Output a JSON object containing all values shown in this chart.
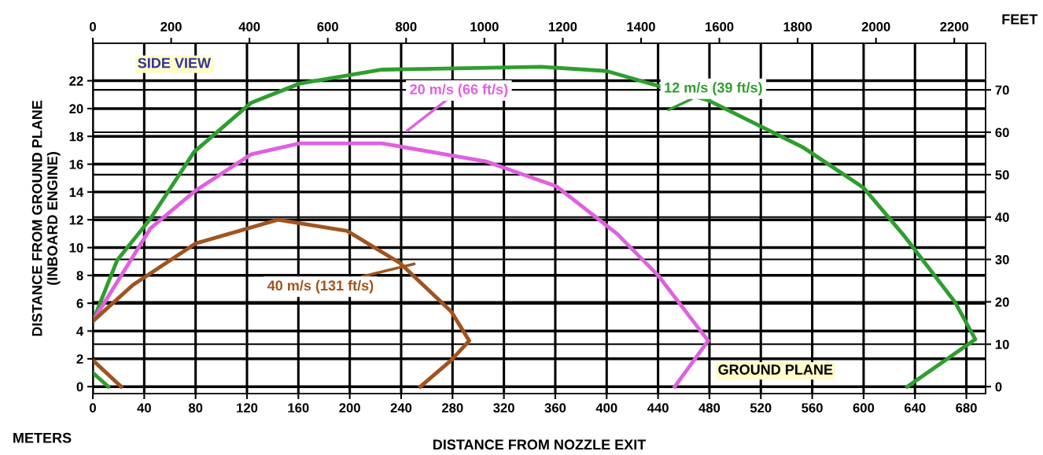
{
  "chart_data": {
    "type": "line",
    "xlabel": "DISTANCE FROM NOZZLE EXIT",
    "ylabel": "DISTANCE FROM GROUND PLANE\n(INBOARD ENGINE)",
    "xlim": [
      0,
      695
    ],
    "ylim": [
      -0.5,
      24.7
    ],
    "xticks": [
      0,
      40,
      80,
      120,
      160,
      200,
      240,
      280,
      320,
      360,
      400,
      440,
      480,
      520,
      560,
      600,
      640,
      680
    ],
    "yticks": [
      0,
      2,
      4,
      6,
      8,
      10,
      12,
      14,
      16,
      18,
      20,
      22
    ],
    "x2lim": [
      0,
      2280
    ],
    "x2ticks": [
      0,
      200,
      400,
      600,
      800,
      1000,
      1200,
      1400,
      1600,
      1800,
      2000,
      2200
    ],
    "y2lim": [
      -1.64,
      81.0
    ],
    "y2ticks": [
      0,
      10,
      20,
      30,
      40,
      50,
      60,
      70
    ],
    "grid": true,
    "line_style": "solid",
    "marker": "none",
    "series": [
      {
        "color": "#2e9e2e",
        "x": [
          0,
          19,
          45,
          79,
          123,
          161,
          225,
          349,
          400,
          479,
          553,
          600,
          632,
          671,
          687,
          634,
          null,
          0,
          12
        ],
        "values": [
          4.7,
          9.1,
          12.1,
          16.9,
          20.4,
          21.8,
          22.8,
          23.0,
          22.7,
          20.6,
          17.2,
          14.3,
          10.8,
          6.1,
          3.4,
          0,
          null,
          1.0,
          0
        ]
      },
      {
        "color": "#e060e0",
        "x": [
          0,
          45,
          80,
          123,
          161,
          225,
          306,
          361,
          408,
          440,
          479,
          453
        ],
        "values": [
          4.7,
          11.4,
          14.1,
          16.7,
          17.5,
          17.5,
          16.2,
          14.4,
          11.0,
          8.0,
          3.3,
          0
        ]
      },
      {
        "color": "#a0541e",
        "x": [
          0,
          31,
          80,
          144,
          198,
          239,
          279,
          293,
          279,
          255,
          null,
          0,
          22
        ],
        "values": [
          4.7,
          7.3,
          10.3,
          12.0,
          11.2,
          8.9,
          5.4,
          3.3,
          1.9,
          0,
          null,
          1.9,
          0
        ]
      }
    ],
    "annotations": [
      "12 m/s (39 ft/s)",
      "20 m/s (66 ft/s)",
      "40 m/s (131 ft/s)",
      "SIDE VIEW",
      "GROUND PLANE",
      "METERS",
      "FEET"
    ]
  }
}
